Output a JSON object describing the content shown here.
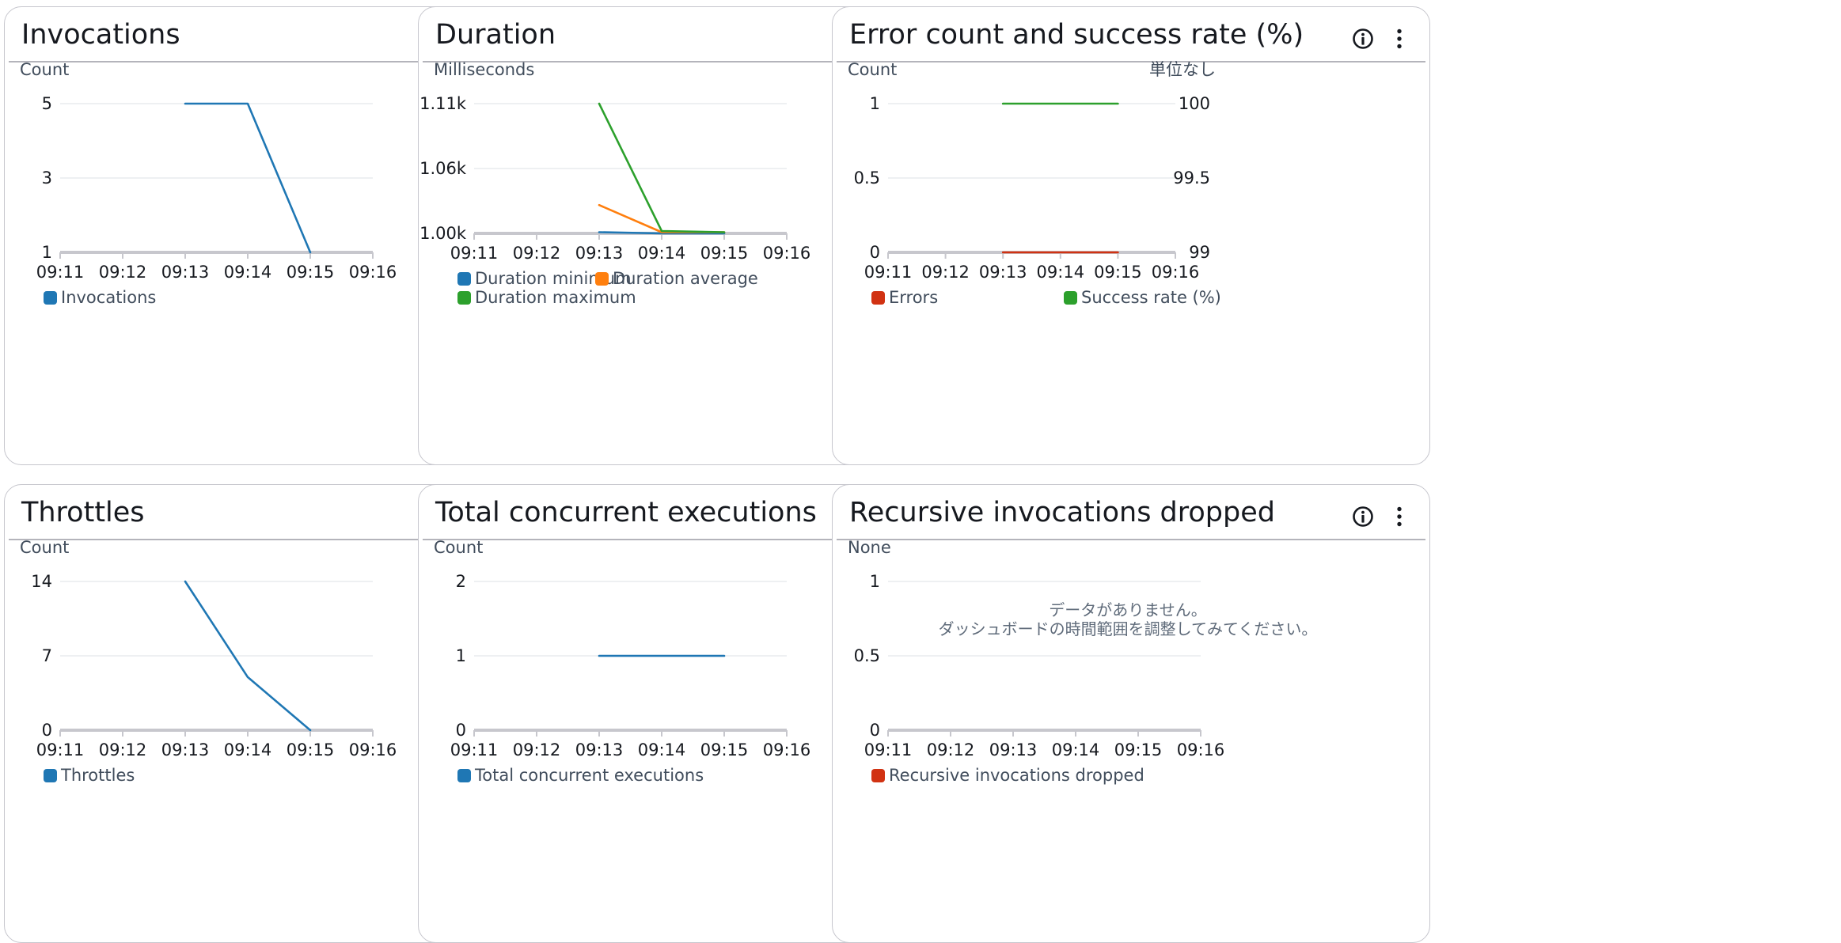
{
  "panels": [
    {
      "title": "Invocations",
      "chart_data": {
        "type": "line",
        "x": [
          "09:11",
          "09:12",
          "09:13",
          "09:14",
          "09:15",
          "09:16"
        ],
        "ylabel": "Count",
        "yticks": [
          "5",
          "3",
          "1"
        ],
        "ylim": [
          1,
          5
        ],
        "series": [
          {
            "name": "Invocations",
            "color": "#1f77b4",
            "axis": "left",
            "points": [
              [
                "09:13",
                5
              ],
              [
                "09:14",
                5
              ],
              [
                "09:15",
                1
              ]
            ]
          }
        ],
        "legend": [
          [
            "Invocations"
          ]
        ]
      }
    },
    {
      "title": "Duration",
      "chart_data": {
        "type": "line",
        "x": [
          "09:11",
          "09:12",
          "09:13",
          "09:14",
          "09:15",
          "09:16"
        ],
        "ylabel": "Milliseconds",
        "yticks": [
          "1.11k",
          "1.06k",
          "1.00k"
        ],
        "ylim": [
          1000,
          1110
        ],
        "series": [
          {
            "name": "Duration minimum",
            "color": "#1f77b4",
            "axis": "left",
            "points": [
              [
                "09:13",
                1001
              ],
              [
                "09:14",
                1000
              ],
              [
                "09:15",
                1000
              ]
            ]
          },
          {
            "name": "Duration average",
            "color": "#ff7f0e",
            "axis": "left",
            "points": [
              [
                "09:13",
                1024
              ],
              [
                "09:14",
                1001
              ],
              [
                "09:15",
                1001
              ]
            ]
          },
          {
            "name": "Duration maximum",
            "color": "#2ca02c",
            "axis": "left",
            "points": [
              [
                "09:13",
                1110
              ],
              [
                "09:14",
                1002
              ],
              [
                "09:15",
                1001
              ]
            ]
          }
        ],
        "legend": [
          [
            "Duration minimum",
            "Duration average"
          ],
          [
            "Duration maximum"
          ]
        ]
      }
    },
    {
      "title": "Error count and success rate (%)",
      "chart_data": {
        "type": "line",
        "x": [
          "09:11",
          "09:12",
          "09:13",
          "09:14",
          "09:15",
          "09:16"
        ],
        "ylabel": "Count",
        "ylabel_right": "単位なし",
        "yticks": [
          "1",
          "0.5",
          "0"
        ],
        "ylim": [
          0,
          1
        ],
        "yticks_right": [
          "100",
          "99.5",
          "99"
        ],
        "ylim_right": [
          99,
          100
        ],
        "series": [
          {
            "name": "Errors",
            "color": "#d13212",
            "axis": "left",
            "points": [
              [
                "09:13",
                0
              ],
              [
                "09:14",
                0
              ],
              [
                "09:15",
                0
              ]
            ]
          },
          {
            "name": "Success rate (%)",
            "color": "#2ca02c",
            "axis": "right",
            "points": [
              [
                "09:13",
                100
              ],
              [
                "09:14",
                100
              ],
              [
                "09:15",
                100
              ]
            ]
          }
        ],
        "legend_split": [
          "Errors",
          "Success rate (%)"
        ]
      }
    },
    {
      "title": "Throttles",
      "chart_data": {
        "type": "line",
        "x": [
          "09:11",
          "09:12",
          "09:13",
          "09:14",
          "09:15",
          "09:16"
        ],
        "ylabel": "Count",
        "yticks": [
          "14",
          "7",
          "0"
        ],
        "ylim": [
          0,
          14
        ],
        "series": [
          {
            "name": "Throttles",
            "color": "#1f77b4",
            "axis": "left",
            "points": [
              [
                "09:13",
                14
              ],
              [
                "09:14",
                5
              ],
              [
                "09:15",
                0
              ]
            ]
          }
        ],
        "legend": [
          [
            "Throttles"
          ]
        ]
      }
    },
    {
      "title": "Total concurrent executions",
      "chart_data": {
        "type": "line",
        "x": [
          "09:11",
          "09:12",
          "09:13",
          "09:14",
          "09:15",
          "09:16"
        ],
        "ylabel": "Count",
        "yticks": [
          "2",
          "1",
          "0"
        ],
        "ylim": [
          0,
          2
        ],
        "series": [
          {
            "name": "Total concurrent executions",
            "color": "#1f77b4",
            "axis": "left",
            "points": [
              [
                "09:13",
                1
              ],
              [
                "09:14",
                1
              ],
              [
                "09:15",
                1
              ]
            ]
          }
        ],
        "legend": [
          [
            "Total concurrent executions"
          ]
        ]
      }
    },
    {
      "title": "Recursive invocations dropped",
      "chart_data": {
        "type": "line",
        "x": [
          "09:11",
          "09:12",
          "09:13",
          "09:14",
          "09:15",
          "09:16"
        ],
        "ylabel": "None",
        "yticks": [
          "1",
          "0.5",
          "0"
        ],
        "ylim": [
          0,
          1
        ],
        "series": [
          {
            "name": "Recursive invocations dropped",
            "color": "#d13212",
            "axis": "left",
            "points": []
          }
        ],
        "legend": [
          [
            "Recursive invocations dropped"
          ]
        ],
        "empty_message": [
          "データがありません。",
          "ダッシュボードの時間範囲を調整してみてください。"
        ]
      }
    }
  ]
}
